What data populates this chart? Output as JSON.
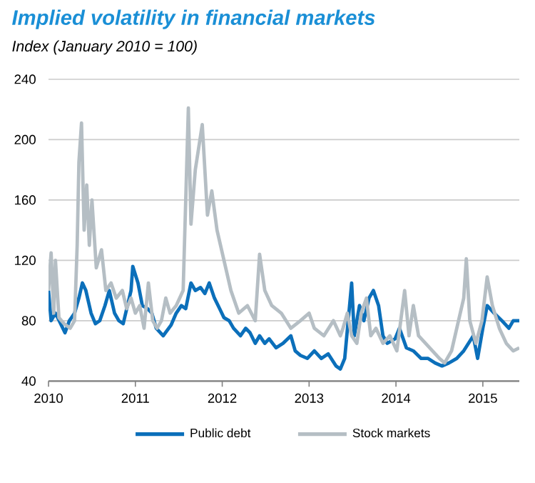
{
  "chart_data": {
    "type": "line",
    "title": "Implied volatility in financial markets",
    "subtitle": "Index (January 2010 = 100)",
    "xlim": [
      2010,
      2015.42
    ],
    "xticks": [
      2010,
      2011,
      2012,
      2013,
      2014,
      2015
    ],
    "ylim": [
      40,
      240
    ],
    "yticks": [
      40,
      80,
      120,
      160,
      200,
      240
    ],
    "grid": "y",
    "legend": "bottom",
    "line_style": "solid",
    "marker": "none",
    "series": [
      {
        "name": "Public debt",
        "color": "#0b6fba",
        "x": [
          2010.0,
          2010.03,
          2010.08,
          2010.14,
          2010.19,
          2010.24,
          2010.3,
          2010.35,
          2010.39,
          2010.43,
          2010.49,
          2010.54,
          2010.59,
          2010.65,
          2010.7,
          2010.76,
          2010.81,
          2010.86,
          2010.95,
          2010.97,
          2011.03,
          2011.08,
          2011.14,
          2011.19,
          2011.24,
          2011.32,
          2011.41,
          2011.47,
          2011.53,
          2011.58,
          2011.64,
          2011.69,
          2011.75,
          2011.8,
          2011.85,
          2011.91,
          2011.97,
          2012.02,
          2012.08,
          2012.13,
          2012.21,
          2012.27,
          2012.32,
          2012.38,
          2012.43,
          2012.49,
          2012.54,
          2012.62,
          2012.7,
          2012.79,
          2012.84,
          2012.9,
          2012.98,
          2013.06,
          2013.14,
          2013.22,
          2013.31,
          2013.36,
          2013.41,
          2013.49,
          2013.52,
          2013.58,
          2013.63,
          2013.69,
          2013.74,
          2013.8,
          2013.85,
          2013.9,
          2013.99,
          2014.04,
          2014.12,
          2014.2,
          2014.29,
          2014.37,
          2014.45,
          2014.53,
          2014.61,
          2014.7,
          2014.78,
          2014.89,
          2014.94,
          2015.0,
          2015.05,
          2015.13,
          2015.22,
          2015.3,
          2015.35,
          2015.42
        ],
        "values": [
          100,
          80,
          85,
          78,
          72,
          80,
          85,
          95,
          105,
          100,
          85,
          78,
          80,
          90,
          100,
          85,
          80,
          78,
          100,
          116,
          105,
          90,
          88,
          85,
          75,
          70,
          77,
          85,
          90,
          88,
          105,
          100,
          102,
          98,
          105,
          95,
          88,
          82,
          80,
          75,
          70,
          75,
          72,
          65,
          70,
          65,
          68,
          62,
          65,
          70,
          60,
          57,
          55,
          60,
          55,
          58,
          50,
          48,
          55,
          105,
          70,
          90,
          80,
          95,
          100,
          90,
          70,
          65,
          68,
          75,
          62,
          60,
          55,
          55,
          52,
          50,
          52,
          55,
          60,
          70,
          55,
          75,
          90,
          85,
          80,
          75,
          80,
          80
        ]
      },
      {
        "name": "Stock markets",
        "color": "#b5bec4",
        "x": [
          2010.0,
          2010.03,
          2010.06,
          2010.08,
          2010.12,
          2010.18,
          2010.25,
          2010.3,
          2010.33,
          2010.35,
          2010.38,
          2010.41,
          2010.44,
          2010.47,
          2010.5,
          2010.55,
          2010.61,
          2010.66,
          2010.72,
          2010.78,
          2010.85,
          2010.9,
          2010.95,
          2011.0,
          2011.05,
          2011.1,
          2011.15,
          2011.2,
          2011.25,
          2011.3,
          2011.35,
          2011.4,
          2011.47,
          2011.55,
          2011.61,
          2011.64,
          2011.69,
          2011.77,
          2011.83,
          2011.88,
          2011.94,
          2012.02,
          2012.1,
          2012.19,
          2012.29,
          2012.38,
          2012.43,
          2012.49,
          2012.57,
          2012.68,
          2012.79,
          2012.9,
          2013.0,
          2013.06,
          2013.17,
          2013.28,
          2013.36,
          2013.39,
          2013.44,
          2013.49,
          2013.55,
          2013.6,
          2013.66,
          2013.71,
          2013.77,
          2013.85,
          2013.93,
          2014.01,
          2014.1,
          2014.15,
          2014.2,
          2014.26,
          2014.34,
          2014.42,
          2014.5,
          2014.56,
          2014.64,
          2014.72,
          2014.78,
          2014.81,
          2014.85,
          2014.92,
          2014.99,
          2015.05,
          2015.11,
          2015.19,
          2015.27,
          2015.35,
          2015.42
        ],
        "values": [
          100,
          125,
          85,
          120,
          82,
          78,
          75,
          80,
          130,
          185,
          211,
          140,
          170,
          130,
          160,
          115,
          127,
          100,
          105,
          95,
          100,
          88,
          95,
          85,
          90,
          75,
          105,
          80,
          75,
          80,
          95,
          85,
          90,
          100,
          221,
          144,
          180,
          210,
          150,
          166,
          140,
          120,
          100,
          85,
          90,
          80,
          124,
          100,
          90,
          85,
          75,
          80,
          85,
          75,
          70,
          80,
          70,
          75,
          85,
          70,
          65,
          85,
          95,
          70,
          75,
          65,
          70,
          60,
          100,
          70,
          90,
          70,
          65,
          60,
          55,
          52,
          60,
          80,
          95,
          121,
          80,
          65,
          80,
          109,
          90,
          75,
          65,
          60,
          62
        ]
      }
    ]
  }
}
